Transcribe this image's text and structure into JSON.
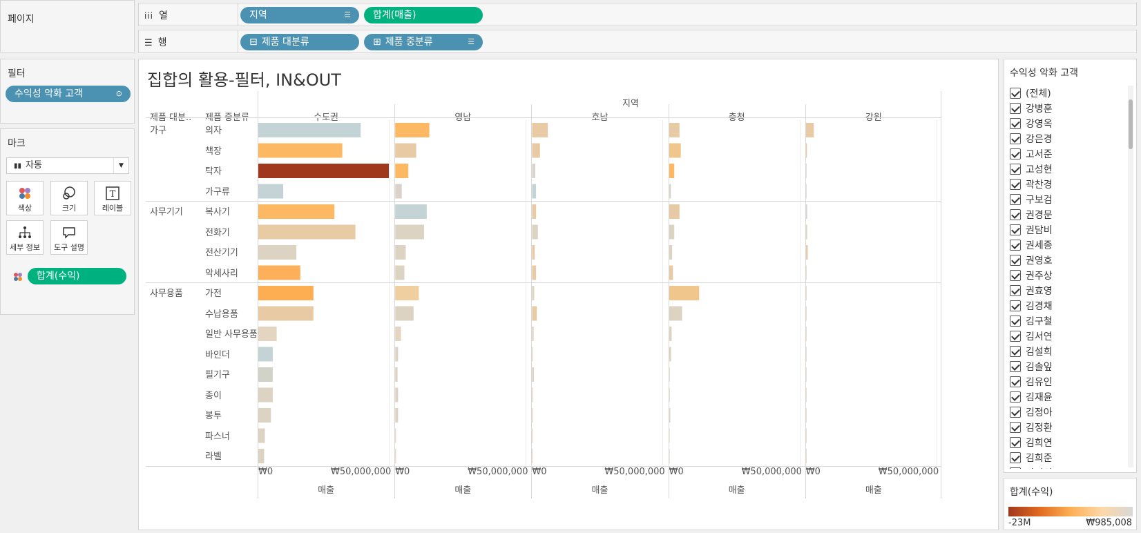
{
  "shelves": {
    "pages_title": "페이지",
    "columns_label": "열",
    "rows_label": "행",
    "columns_pills": [
      {
        "label": "지역",
        "color": "#4b91b2"
      },
      {
        "label": "합계(매출)",
        "color": "#00b180"
      }
    ],
    "rows_pills": [
      {
        "label": "제품 대분류",
        "color": "#4b91b2"
      },
      {
        "label": "제품 중분류",
        "color": "#4b91b2"
      }
    ]
  },
  "filters": {
    "title": "필터",
    "pill": "수익성 악화 고객"
  },
  "marks": {
    "title": "마크",
    "type_select": "자동",
    "buttons": {
      "color": "색상",
      "size": "크기",
      "label": "레이블",
      "detail": "세부 정보",
      "tooltip": "도구 설명"
    },
    "color_pill": "합계(수익)"
  },
  "viz": {
    "title": "집합의 활용-필터, IN&OUT",
    "column_header": "지역",
    "row_header_1": "제품 대분..",
    "row_header_2": "제품 중분류",
    "axis_title": "매출",
    "axis_tick_0": "₩0",
    "axis_tick_50m": "₩50,000,000"
  },
  "chart_data": {
    "type": "bar",
    "title": "집합의 활용-필터, IN&OUT",
    "xlabel": "매출",
    "xlim": [
      0,
      55000000
    ],
    "color_measure": "합계(수익)",
    "regions": [
      "수도권",
      "영남",
      "호남",
      "충청",
      "강원"
    ],
    "groups": [
      {
        "name": "가구",
        "subcategories": [
          "의자",
          "책장",
          "탁자",
          "가구류"
        ]
      },
      {
        "name": "사무기기",
        "subcategories": [
          "복사기",
          "전화기",
          "전산기기",
          "악세사리"
        ]
      },
      {
        "name": "사무용품",
        "subcategories": [
          "가전",
          "수납용품",
          "일반 사무용품",
          "바인더",
          "필기구",
          "종이",
          "봉투",
          "파스너",
          "라벨"
        ]
      }
    ],
    "rows": [
      {
        "category": "가구",
        "subcategory": "의자",
        "sales": [
          39000000,
          13000000,
          6000000,
          4000000,
          3000000
        ],
        "color": [
          "#c3d3d6",
          "#fdb863",
          "#e8caa4",
          "#e8caa4",
          "#e8caa4"
        ]
      },
      {
        "category": "가구",
        "subcategory": "책장",
        "sales": [
          32000000,
          8000000,
          3000000,
          4500000,
          400000
        ],
        "color": [
          "#fdb863",
          "#e8caa4",
          "#e8caa4",
          "#f1c68c",
          "#e8caa4"
        ]
      },
      {
        "category": "가구",
        "subcategory": "탁자",
        "sales": [
          50000000,
          5000000,
          1200000,
          2000000,
          100000
        ],
        "color": [
          "#a0381d",
          "#fdb863",
          "#d8d4cc",
          "#fdb863",
          "#d8d4cc"
        ]
      },
      {
        "category": "가구",
        "subcategory": "가구류",
        "sales": [
          9500000,
          2500000,
          1500000,
          700000,
          100000
        ],
        "color": [
          "#c3d3d6",
          "#d8d4cc",
          "#c3d3d6",
          "#d8d4cc",
          "#d8d4cc"
        ]
      },
      {
        "category": "사무기기",
        "subcategory": "복사기",
        "sales": [
          29000000,
          12000000,
          1500000,
          4000000,
          500000
        ],
        "color": [
          "#fdb863",
          "#c3d3d6",
          "#e8caa4",
          "#e8caa4",
          "#d8d4cc"
        ]
      },
      {
        "category": "사무기기",
        "subcategory": "전화기",
        "sales": [
          37000000,
          11000000,
          2200000,
          2000000,
          500000
        ],
        "color": [
          "#e8caa4",
          "#ddd3c3",
          "#ddd3c3",
          "#ddd3c3",
          "#ddd3c3"
        ]
      },
      {
        "category": "사무기기",
        "subcategory": "전산기기",
        "sales": [
          14500000,
          4000000,
          1000000,
          1200000,
          700000
        ],
        "color": [
          "#ddd3c3",
          "#ddd3c3",
          "#e8caa4",
          "#ddd3c3",
          "#e8caa4"
        ]
      },
      {
        "category": "사무기기",
        "subcategory": "악세사리",
        "sales": [
          16000000,
          3500000,
          1500000,
          1500000,
          100000
        ],
        "color": [
          "#fdb05a",
          "#ddd3c3",
          "#e8caa4",
          "#e8caa4",
          "#ddd3c3"
        ]
      },
      {
        "category": "사무용품",
        "subcategory": "가전",
        "sales": [
          21000000,
          9000000,
          800000,
          11500000,
          100000
        ],
        "color": [
          "#fdae53",
          "#efcf9f",
          "#ddd3c3",
          "#f1c68c",
          "#ddd3c3"
        ]
      },
      {
        "category": "사무용품",
        "subcategory": "수납용품",
        "sales": [
          21000000,
          7000000,
          1800000,
          5000000,
          100000
        ],
        "color": [
          "#e8caa4",
          "#ddd3c3",
          "#e8caa4",
          "#ddd3c3",
          "#ddd3c3"
        ]
      },
      {
        "category": "사무용품",
        "subcategory": "일반 사무용품",
        "sales": [
          7000000,
          2200000,
          600000,
          1000000,
          100000
        ],
        "color": [
          "#e3d5c0",
          "#e3d5c0",
          "#ddd3c3",
          "#ddd3c3",
          "#ddd3c3"
        ]
      },
      {
        "category": "사무용품",
        "subcategory": "바인더",
        "sales": [
          5500000,
          1100000,
          300000,
          800000,
          100000
        ],
        "color": [
          "#c3d3d6",
          "#ddd3c3",
          "#ddd3c3",
          "#ddd3c3",
          "#ddd3c3"
        ]
      },
      {
        "category": "사무용품",
        "subcategory": "필기구",
        "sales": [
          5500000,
          900000,
          700000,
          300000,
          100000
        ],
        "color": [
          "#d1d3c9",
          "#ddd3c3",
          "#ddd3c3",
          "#ddd3c3",
          "#ddd3c3"
        ]
      },
      {
        "category": "사무용품",
        "subcategory": "종이",
        "sales": [
          5500000,
          1100000,
          300000,
          300000,
          100000
        ],
        "color": [
          "#ddd3c3",
          "#ddd3c3",
          "#ddd3c3",
          "#ddd3c3",
          "#ddd3c3"
        ]
      },
      {
        "category": "사무용품",
        "subcategory": "봉투",
        "sales": [
          4800000,
          1100000,
          300000,
          500000,
          100000
        ],
        "color": [
          "#ddd3c3",
          "#ddd3c3",
          "#ddd3c3",
          "#ddd3c3",
          "#ddd3c3"
        ]
      },
      {
        "category": "사무용품",
        "subcategory": "파스너",
        "sales": [
          2500000,
          300000,
          200000,
          200000,
          100000
        ],
        "color": [
          "#ddd3c3",
          "#ddd3c3",
          "#ddd3c3",
          "#ddd3c3",
          "#ddd3c3"
        ]
      },
      {
        "category": "사무용품",
        "subcategory": "라벨",
        "sales": [
          2200000,
          300000,
          200000,
          200000,
          100000
        ],
        "color": [
          "#ddd3c3",
          "#ddd3c3",
          "#ddd3c3",
          "#ddd3c3",
          "#ddd3c3"
        ]
      }
    ]
  },
  "filter_card": {
    "title": "수익성 악화 고객",
    "items": [
      "(전체)",
      "강병훈",
      "강영옥",
      "강은경",
      "고서준",
      "고성현",
      "곽찬경",
      "구보검",
      "권경문",
      "권담비",
      "권세종",
      "권영호",
      "권주상",
      "권효영",
      "김경채",
      "김구철",
      "김서연",
      "김설희",
      "김솔잎",
      "김유인",
      "김재윤",
      "김정아",
      "김정환",
      "김희연",
      "김희준",
      "나미석"
    ]
  },
  "color_legend": {
    "title": "합계(수익)",
    "min_label": "-23M",
    "max_label": "₩985,008",
    "gradient": [
      "#a0381d",
      "#e06a20",
      "#fdae53",
      "#fdd8a8",
      "#d8d8d8"
    ]
  }
}
